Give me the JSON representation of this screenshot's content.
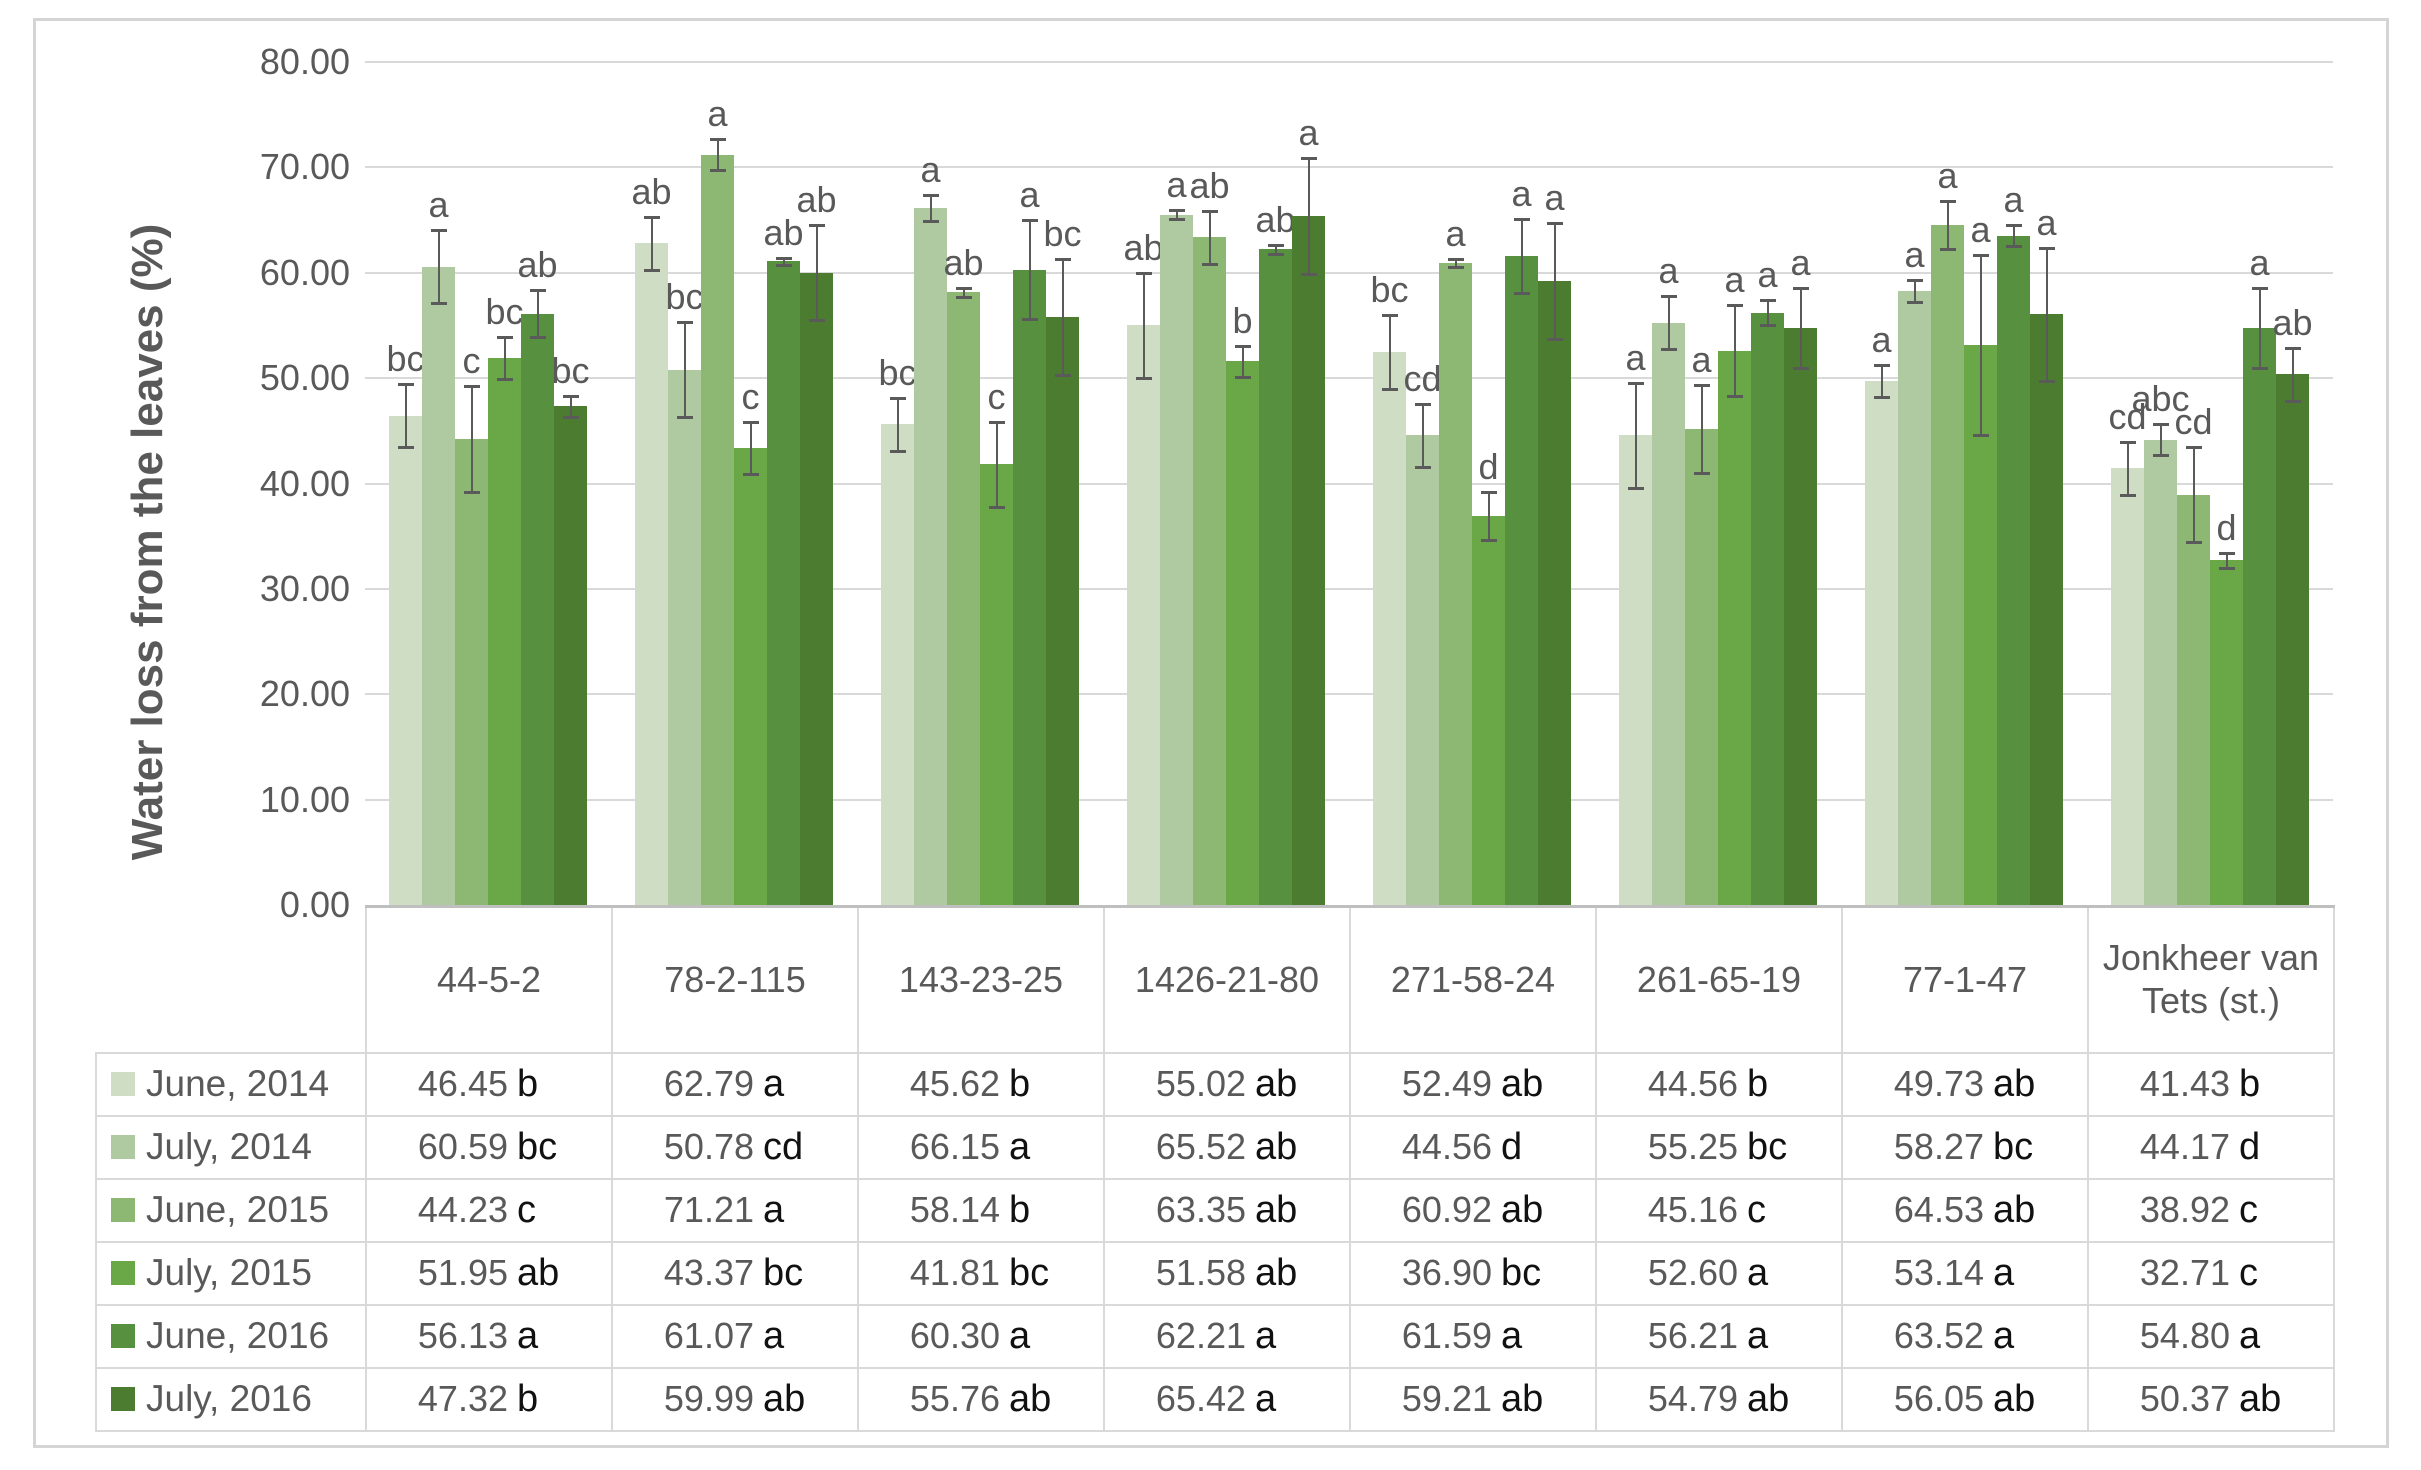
{
  "chart_data": {
    "type": "bar",
    "title": "",
    "xlabel": "",
    "ylabel": "Water loss from the leaves (%)",
    "ylim": [
      0,
      80
    ],
    "ytick_step": 10,
    "ytick_labels": [
      "0.00",
      "10.00",
      "20.00",
      "30.00",
      "40.00",
      "50.00",
      "60.00",
      "70.00",
      "80.00"
    ],
    "grid": "horizontal",
    "error_bars": true,
    "legend_position": "table-left",
    "categories": [
      "44-5-2",
      "78-2-115",
      "143-23-25",
      "1426-21-80",
      "271-58-24",
      "261-65-19",
      "77-1-47",
      "Jonkheer van Tets (st.)"
    ],
    "series": [
      {
        "name": "June, 2014",
        "color": "#cfddc5",
        "values": [
          46.45,
          62.79,
          45.62,
          55.02,
          52.49,
          44.56,
          49.73,
          41.43
        ],
        "errors": [
          3.0,
          2.5,
          2.5,
          5.0,
          3.5,
          5.0,
          1.5,
          2.5
        ],
        "bar_letters": [
          "bc",
          "ab",
          "bc",
          "ab",
          "bc",
          "a",
          "a",
          "cd"
        ],
        "table_letters": [
          "b",
          "a",
          "b",
          "ab",
          "ab",
          "b",
          "ab",
          "b"
        ]
      },
      {
        "name": "July, 2014",
        "color": "#afc9a0",
        "values": [
          60.59,
          50.78,
          66.15,
          65.52,
          44.56,
          55.25,
          58.27,
          44.17
        ],
        "errors": [
          3.5,
          4.5,
          1.2,
          0.4,
          3.0,
          2.5,
          1.0,
          1.5
        ],
        "bar_letters": [
          "a",
          "bc",
          "a",
          "a",
          "cd",
          "a",
          "a",
          "abc"
        ],
        "table_letters": [
          "bc",
          "cd",
          "a",
          "ab",
          "d",
          "bc",
          "bc",
          "d"
        ]
      },
      {
        "name": "June, 2015",
        "color": "#8cb873",
        "values": [
          44.23,
          71.21,
          58.14,
          63.35,
          60.92,
          45.16,
          64.53,
          38.92
        ],
        "errors": [
          5.0,
          1.5,
          0.4,
          2.5,
          0.4,
          4.2,
          2.3,
          4.5
        ],
        "bar_letters": [
          "c",
          "a",
          "ab",
          "ab",
          "a",
          "a",
          "a",
          "cd"
        ],
        "table_letters": [
          "c",
          "a",
          "b",
          "ab",
          "ab",
          "c",
          "ab",
          "c"
        ]
      },
      {
        "name": "July, 2015",
        "color": "#69a747",
        "values": [
          51.95,
          43.37,
          41.81,
          51.58,
          36.9,
          52.6,
          53.14,
          32.71
        ],
        "errors": [
          2.0,
          2.5,
          4.0,
          1.5,
          2.3,
          4.3,
          8.5,
          0.7
        ],
        "bar_letters": [
          "bc",
          "c",
          "c",
          "b",
          "d",
          "a",
          "a",
          "d"
        ],
        "table_letters": [
          "ab",
          "bc",
          "bc",
          "ab",
          "bc",
          "a",
          "a",
          "c"
        ]
      },
      {
        "name": "June, 2016",
        "color": "#579140",
        "values": [
          56.13,
          61.07,
          60.3,
          62.21,
          61.59,
          56.21,
          63.52,
          54.8
        ],
        "errors": [
          2.2,
          0.3,
          4.7,
          0.4,
          3.5,
          1.2,
          1.0,
          3.8
        ],
        "bar_letters": [
          "ab",
          "ab",
          "a",
          "ab",
          "a",
          "a",
          "a",
          "a"
        ],
        "table_letters": [
          "a",
          "a",
          "a",
          "a",
          "a",
          "a",
          "a",
          "a"
        ]
      },
      {
        "name": "July, 2016",
        "color": "#4b7c30",
        "values": [
          47.32,
          59.99,
          55.76,
          65.42,
          59.21,
          54.79,
          56.05,
          50.37
        ],
        "errors": [
          1.0,
          4.5,
          5.5,
          5.5,
          5.5,
          3.8,
          6.3,
          2.5
        ],
        "bar_letters": [
          "bc",
          "ab",
          "bc",
          "a",
          "a",
          "a",
          "a",
          "ab"
        ],
        "table_letters": [
          "b",
          "ab",
          "ab",
          "a",
          "ab",
          "ab",
          "ab",
          "ab"
        ]
      }
    ]
  }
}
